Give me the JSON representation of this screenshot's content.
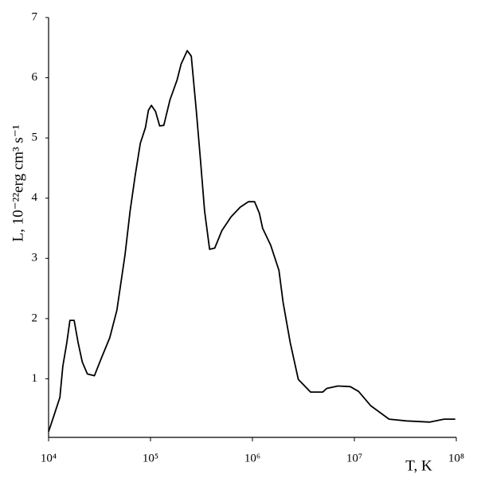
{
  "chart_data": {
    "type": "line",
    "x_label": "T, K",
    "y_label": "L, 10⁻²²erg cm³ s⁻¹",
    "xscale": "log",
    "x": [
      10000,
      11350,
      12900,
      13800,
      15100,
      16200,
      17800,
      19500,
      21400,
      24000,
      28200,
      33100,
      39800,
      46800,
      56200,
      63100,
      70800,
      79400,
      89100,
      95500,
      102000,
      112000,
      123000,
      135000,
      155000,
      182000,
      200000,
      229000,
      251000,
      282000,
      309000,
      339000,
      380000,
      427000,
      501000,
      617000,
      759000,
      912000,
      1050000,
      1170000,
      1260000,
      1510000,
      1820000,
      2000000,
      2340000,
      2820000,
      3720000,
      4900000,
      5370000,
      6920000,
      9120000,
      11000000,
      14500000,
      21900000,
      32400000,
      55000000,
      75900000,
      97700000
    ],
    "series": [
      {
        "color": "#000000",
        "values": [
          0.12,
          0.4,
          0.69,
          1.21,
          1.6,
          1.97,
          1.97,
          1.6,
          1.28,
          1.08,
          1.05,
          1.35,
          1.68,
          2.14,
          3.06,
          3.79,
          4.38,
          4.91,
          5.17,
          5.46,
          5.54,
          5.44,
          5.2,
          5.21,
          5.63,
          5.96,
          6.23,
          6.45,
          6.36,
          5.44,
          4.64,
          3.79,
          3.15,
          3.17,
          3.46,
          3.69,
          3.85,
          3.94,
          3.94,
          3.75,
          3.5,
          3.22,
          2.8,
          2.27,
          1.61,
          0.99,
          0.78,
          0.78,
          0.84,
          0.88,
          0.87,
          0.79,
          0.55,
          0.33,
          0.3,
          0.28,
          0.33,
          0.33
        ]
      }
    ],
    "xlim": [
      10000,
      100000000
    ],
    "xticks": [
      {
        "value": 10000,
        "label": "10⁴"
      },
      {
        "value": 100000,
        "label": "10⁵"
      },
      {
        "value": 1000000,
        "label": "10⁶"
      },
      {
        "value": 10000000,
        "label": "10⁷"
      },
      {
        "value": 100000000,
        "label": "10⁸"
      }
    ],
    "ylim": [
      0,
      7
    ],
    "yticks": [
      1,
      2,
      3,
      4,
      5,
      6,
      7
    ]
  }
}
